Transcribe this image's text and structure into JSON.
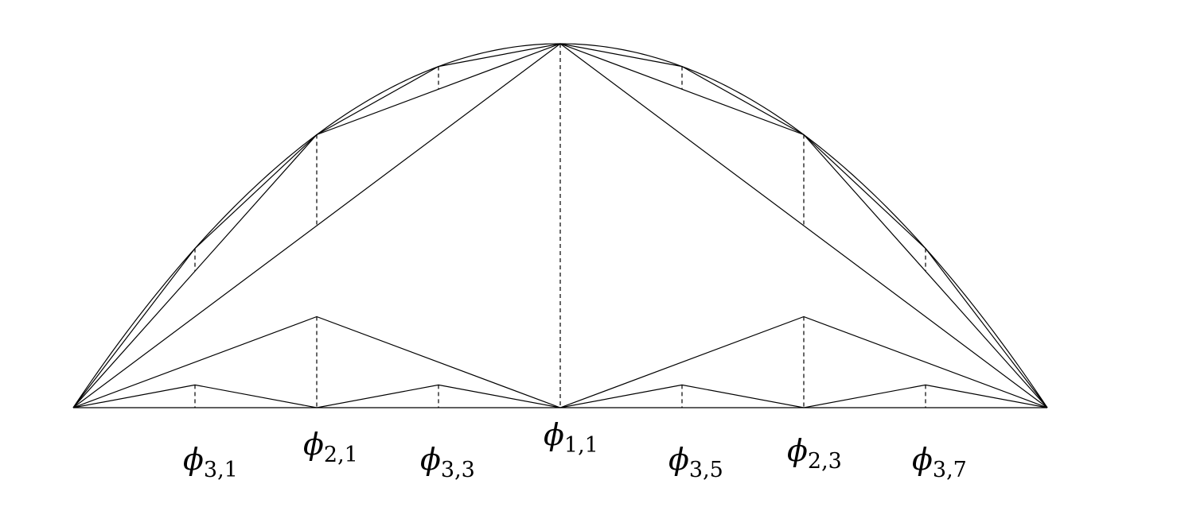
{
  "labels": [
    {
      "id": "phi-3-1",
      "symbol": "ϕ",
      "subscript": "3,1"
    },
    {
      "id": "phi-2-1",
      "symbol": "ϕ",
      "subscript": "2,1"
    },
    {
      "id": "phi-3-3",
      "symbol": "ϕ",
      "subscript": "3,3"
    },
    {
      "id": "phi-1-1",
      "symbol": "ϕ",
      "subscript": "1,1"
    },
    {
      "id": "phi-3-5",
      "symbol": "ϕ",
      "subscript": "3,5"
    },
    {
      "id": "phi-2-3",
      "symbol": "ϕ",
      "subscript": "2,3"
    },
    {
      "id": "phi-3-7",
      "symbol": "ϕ",
      "subscript": "3,7"
    }
  ],
  "colors": {
    "stroke": "#000000",
    "background": "#ffffff"
  }
}
